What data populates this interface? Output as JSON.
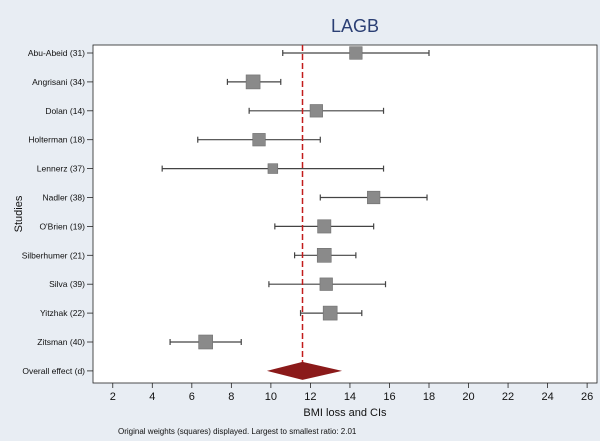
{
  "chart_data": {
    "type": "forest",
    "title": "LAGB",
    "xlabel": "BMI loss and CIs",
    "ylabel": "Studies",
    "note": "Original weights (squares) displayed. Largest to smallest ratio: 2.01",
    "xlim": [
      1,
      26.5
    ],
    "xticks": [
      2,
      4,
      6,
      8,
      10,
      12,
      14,
      16,
      18,
      20,
      22,
      24,
      26
    ],
    "reference_line": 11.6,
    "studies": [
      {
        "label": "Abu-Abeid (31)",
        "estimate": 14.3,
        "lower": 10.6,
        "upper": 18.0,
        "weight": 0.9
      },
      {
        "label": "Angrisani (34)",
        "estimate": 9.1,
        "lower": 7.8,
        "upper": 10.5,
        "weight": 1.0
      },
      {
        "label": "Dolan (14)",
        "estimate": 12.3,
        "lower": 8.9,
        "upper": 15.7,
        "weight": 0.9
      },
      {
        "label": "Holterman (18)",
        "estimate": 9.4,
        "lower": 6.3,
        "upper": 12.5,
        "weight": 0.9
      },
      {
        "label": "Lennerz (37)",
        "estimate": 10.1,
        "lower": 4.5,
        "upper": 15.7,
        "weight": 0.7
      },
      {
        "label": "Nadler (38)",
        "estimate": 15.2,
        "lower": 12.5,
        "upper": 17.9,
        "weight": 0.9
      },
      {
        "label": "O'Brien (19)",
        "estimate": 12.7,
        "lower": 10.2,
        "upper": 15.2,
        "weight": 0.95
      },
      {
        "label": "Silberhumer (21)",
        "estimate": 12.7,
        "lower": 11.2,
        "upper": 14.3,
        "weight": 1.0
      },
      {
        "label": "Silva (39)",
        "estimate": 12.8,
        "lower": 9.9,
        "upper": 15.8,
        "weight": 0.9
      },
      {
        "label": "Yitzhak (22)",
        "estimate": 13.0,
        "lower": 11.5,
        "upper": 14.6,
        "weight": 1.0
      },
      {
        "label": "Zitsman (40)",
        "estimate": 6.7,
        "lower": 4.9,
        "upper": 8.5,
        "weight": 1.0
      }
    ],
    "overall": {
      "label": "Overall effect (d)",
      "estimate": 11.6,
      "lower": 9.8,
      "upper": 13.6
    },
    "colors": {
      "square": "#8a8a8a",
      "diamond": "#8b1a1a",
      "reference": "#c21c1c",
      "background": "#e8edf3"
    }
  }
}
